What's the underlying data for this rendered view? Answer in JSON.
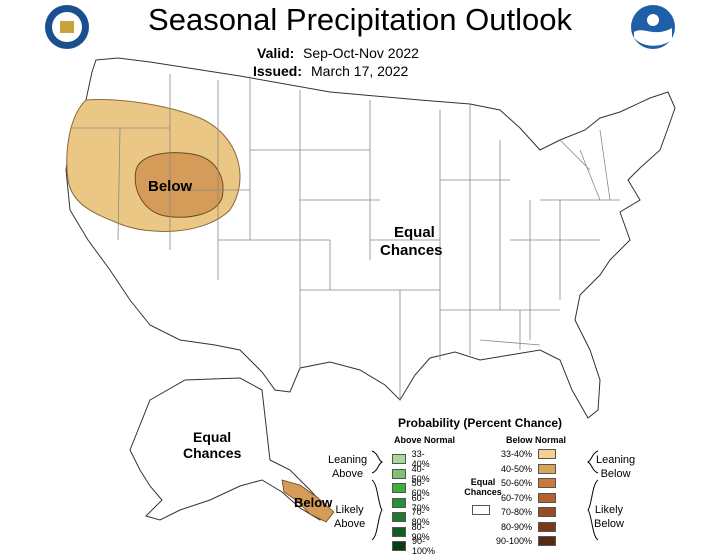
{
  "title": "Seasonal Precipitation Outlook",
  "valid_label": "Valid:",
  "valid_value": "Sep-Oct-Nov 2022",
  "issued_label": "Issued:",
  "issued_value": "March 17, 2022",
  "map_labels": {
    "below": "Below",
    "equal_1": "Equal",
    "chances_1": "Chances",
    "alaska_equal": "Equal",
    "alaska_chances": "Chances",
    "alaska_below": "Below"
  },
  "legend": {
    "title": "Probability (Percent Chance)",
    "above_header": "Above Normal",
    "below_header": "Below Normal",
    "equal_1": "Equal",
    "equal_2": "Chances",
    "leaning_above_1": "Leaning",
    "leaning_above_2": "Above",
    "likely_above_1": "Likely",
    "likely_above_2": "Above",
    "leaning_below_1": "Leaning",
    "leaning_below_2": "Below",
    "likely_below_1": "Likely",
    "likely_below_2": "Below",
    "above_rows": [
      {
        "label": "33-40%",
        "color": "#a6d99a"
      },
      {
        "label": "40-50%",
        "color": "#7dc46f"
      },
      {
        "label": "50-60%",
        "color": "#3fae3c"
      },
      {
        "label": "60-70%",
        "color": "#2a8f3a"
      },
      {
        "label": "70-80%",
        "color": "#1d7a2e"
      },
      {
        "label": "80-90%",
        "color": "#0f5e22"
      },
      {
        "label": "90-100%",
        "color": "#0a3d16"
      }
    ],
    "below_rows": [
      {
        "label": "33-40%",
        "color": "#f2d38e"
      },
      {
        "label": "40-50%",
        "color": "#d9a35a"
      },
      {
        "label": "50-60%",
        "color": "#c77a3a"
      },
      {
        "label": "60-70%",
        "color": "#b5612e"
      },
      {
        "label": "70-80%",
        "color": "#9a4a24"
      },
      {
        "label": "80-90%",
        "color": "#7a3a1a"
      },
      {
        "label": "90-100%",
        "color": "#5a2812"
      }
    ]
  },
  "logos": {
    "left": "doc-seal-icon",
    "right": "noaa-logo-icon"
  },
  "colors": {
    "leaning_below": "#e6c27e",
    "below_40_50": "#d19a57",
    "state_lines": "#7a7a7a"
  }
}
